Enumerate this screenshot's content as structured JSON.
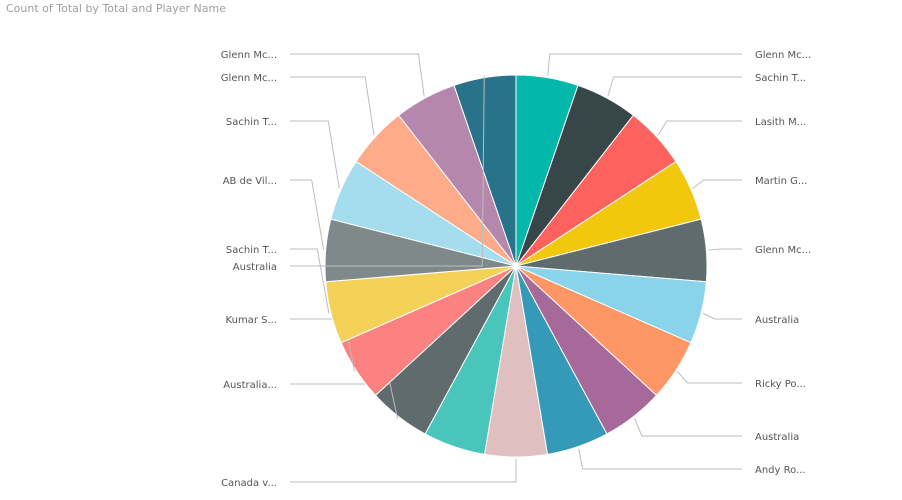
{
  "chart_data": {
    "type": "pie",
    "title": "Count of Total by Total and Player Name",
    "slices": [
      {
        "label": "Glenn Mc...",
        "value": 1,
        "color": "#01B8AA"
      },
      {
        "label": "Sachin T...",
        "value": 1,
        "color": "#374649"
      },
      {
        "label": "Lasith M...",
        "value": 1,
        "color": "#FD625E"
      },
      {
        "label": "Martin G...",
        "value": 1,
        "color": "#F2C80F"
      },
      {
        "label": "Glenn Mc...",
        "value": 1,
        "color": "#5F6B6D"
      },
      {
        "label": "Australia",
        "value": 1,
        "color": "#8AD4EB"
      },
      {
        "label": "Ricky Po...",
        "value": 1,
        "color": "#FE9666"
      },
      {
        "label": "Australia",
        "value": 1,
        "color": "#A66999"
      },
      {
        "label": "Andy Ro...",
        "value": 1,
        "color": "#3599B8"
      },
      {
        "label": "Canada v...",
        "value": 1,
        "color": "#DFBFBF"
      },
      {
        "label": "",
        "value": 1,
        "color": "#4AC5BB"
      },
      {
        "label": "Australia...",
        "value": 1,
        "color": "#5F6B6D"
      },
      {
        "label": "Kumar S...",
        "value": 1,
        "color": "#FB8281"
      },
      {
        "label": "Sachin T...",
        "value": 1,
        "color": "#F4D25A"
      },
      {
        "label": "AB de Vil...",
        "value": 1,
        "color": "#7F898A"
      },
      {
        "label": "Sachin T...",
        "value": 1,
        "color": "#A4DDEE"
      },
      {
        "label": "Glenn Mc...",
        "value": 1,
        "color": "#FDAB89"
      },
      {
        "label": "Glenn Mc...",
        "value": 1,
        "color": "#B687AC"
      },
      {
        "label": "Australia",
        "value": 1,
        "color": "#28738A"
      }
    ]
  }
}
